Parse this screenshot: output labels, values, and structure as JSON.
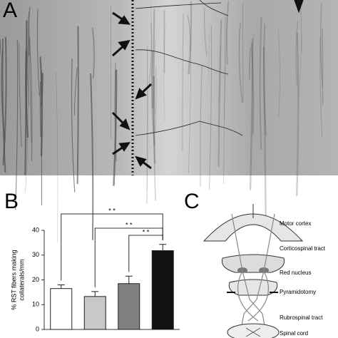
{
  "panel_labels": [
    "A",
    "B",
    "C"
  ],
  "chart_data": {
    "type": "bar",
    "ylabel": [
      "% RST fibers making",
      "collaterals/mm"
    ],
    "categories": [
      null,
      null,
      null,
      null
    ],
    "values": [
      16.5,
      13.3,
      18.5,
      31.8
    ],
    "errors": [
      1.5,
      2,
      3,
      2.5
    ],
    "colors": [
      "#ffffff",
      "#c8c8c8",
      "#808080",
      "#111111"
    ],
    "ylim": [
      0,
      40
    ],
    "yticks": [
      0,
      10,
      20,
      30,
      40
    ],
    "significance": [
      "* *",
      "* *",
      "* *"
    ]
  },
  "diagram": {
    "labels": [
      "Motor cortex",
      "Corticospinal tract",
      "Red nucleus",
      "Pyramidotomy",
      "Rubrospinal tract",
      "Spinal cord"
    ]
  }
}
